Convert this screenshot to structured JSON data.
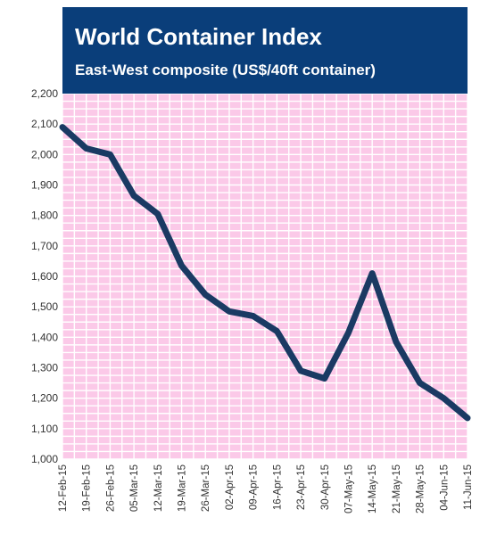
{
  "chart_data": {
    "type": "line",
    "title": "World Container Index",
    "subtitle": "East-West composite (US$/40ft container)",
    "xlabel": "",
    "ylabel": "",
    "categories": [
      "12-Feb-15",
      "19-Feb-15",
      "26-Feb-15",
      "05-Mar-15",
      "12-Mar-15",
      "19-Mar-15",
      "26-Mar-15",
      "02-Apr-15",
      "09-Apr-15",
      "16-Apr-15",
      "23-Apr-15",
      "30-Apr-15",
      "07-May-15",
      "14-May-15",
      "21-May-15",
      "28-May-15",
      "04-Jun-15",
      "11-Jun-15"
    ],
    "series": [
      {
        "name": "",
        "values": [
          2090,
          2020,
          2000,
          1865,
          1805,
          1635,
          1540,
          1485,
          1470,
          1420,
          1290,
          1265,
          1415,
          1610,
          1385,
          1250,
          1200,
          1135
        ]
      }
    ],
    "ylim": [
      1000,
      2200
    ],
    "yticks": [
      "1,000",
      "1,100",
      "1,200",
      "1,300",
      "1,400",
      "1,500",
      "1,600",
      "1,700",
      "1,800",
      "1,900",
      "2,000",
      "2,100",
      "2,200"
    ],
    "grid": true,
    "colors": {
      "plot_bg": "#fbc9e8",
      "grid": "#ffffff",
      "line": "#1a3a63",
      "title_bg": "#0a3e7a",
      "title_text": "#ffffff"
    }
  }
}
